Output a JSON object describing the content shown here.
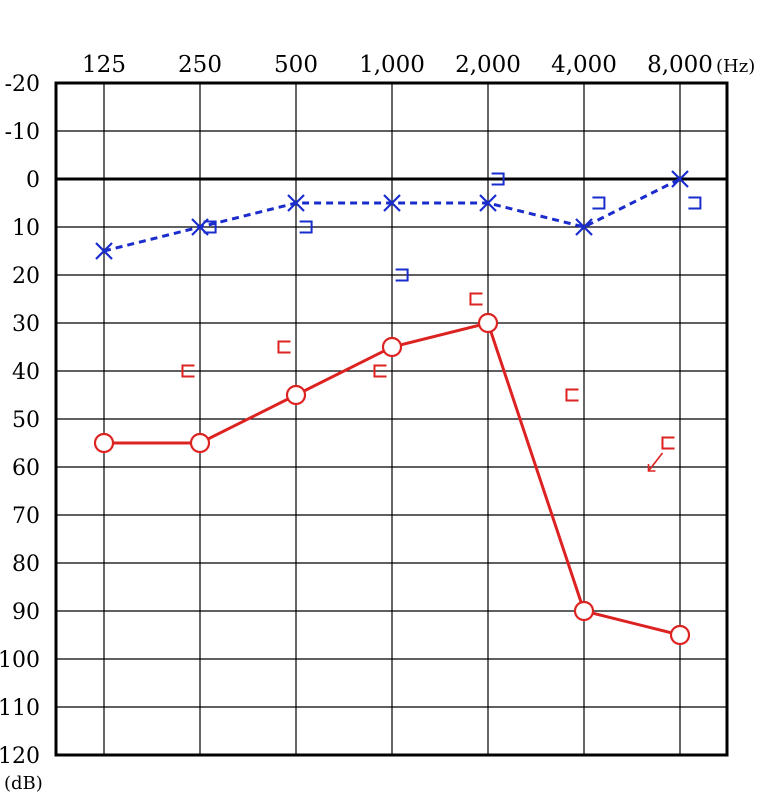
{
  "chart_data": {
    "type": "line",
    "x_unit": "(Hz)",
    "y_unit": "(dB)",
    "x_ticks": [
      "125",
      "250",
      "500",
      "1,000",
      "2,000",
      "4,000",
      "8,000"
    ],
    "y_ticks": [
      "-20",
      "-10",
      "0",
      "10",
      "20",
      "30",
      "40",
      "50",
      "60",
      "70",
      "80",
      "90",
      "100",
      "110",
      "120"
    ],
    "y_range": [
      -20,
      120
    ],
    "y_direction": "down",
    "grid": true,
    "reference_line_y": 0,
    "series": [
      {
        "marker": "cross",
        "line": "dashed",
        "color": "#1a2ccc",
        "values": [
          15,
          10,
          5,
          5,
          5,
          10,
          0
        ]
      },
      {
        "marker": "circle",
        "line": "solid",
        "color": "#dd2222",
        "values": [
          55,
          55,
          45,
          35,
          30,
          90,
          95
        ]
      }
    ],
    "bone_conduction": [
      {
        "symbol": "]",
        "color": "#1a2ccc",
        "points": [
          {
            "x": 1.1,
            "y": 10
          },
          {
            "x": 2.1,
            "y": 10
          },
          {
            "x": 3.1,
            "y": 20
          },
          {
            "x": 4.1,
            "y": 0
          },
          {
            "x": 5.15,
            "y": 5
          },
          {
            "x": 6.15,
            "y": 5
          }
        ]
      },
      {
        "symbol": "[",
        "color": "#dd2222",
        "points": [
          {
            "x": 0.88,
            "y": 40
          },
          {
            "x": 1.88,
            "y": 35
          },
          {
            "x": 2.88,
            "y": 40
          },
          {
            "x": 3.88,
            "y": 25
          },
          {
            "x": 4.88,
            "y": 45
          },
          {
            "x": 5.88,
            "y": 55,
            "arrow": true
          }
        ]
      }
    ]
  }
}
